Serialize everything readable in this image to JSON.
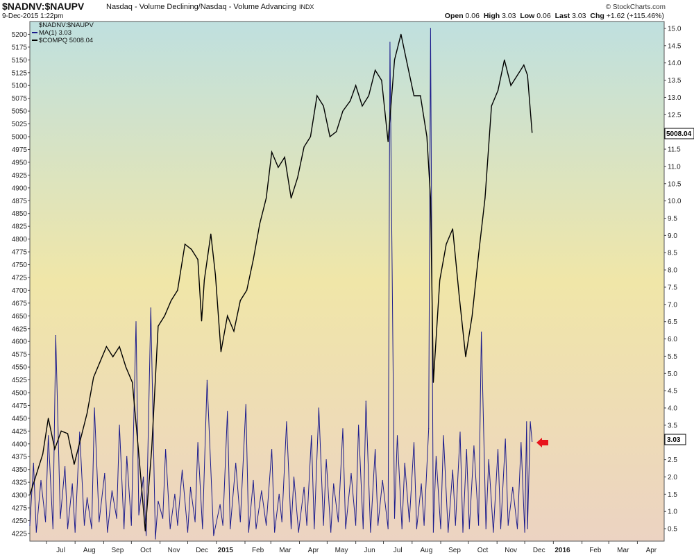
{
  "header": {
    "symbol": "$NADNV:$NAUPV",
    "description": "Nasdaq - Volume Declining/Nasdaq - Volume Advancing",
    "exchange": "INDX",
    "date": "9-Dec-2015 1:22pm",
    "brand": "© StockCharts.com",
    "open_label": "Open",
    "open_value": "0.06",
    "high_label": "High",
    "high_value": "3.03",
    "low_label": "Low",
    "low_value": "0.06",
    "last_label": "Last",
    "last_value": "3.03",
    "chg_label": "Chg",
    "chg_value": "+1.62 (+115.46%)"
  },
  "legend": [
    {
      "label": "$NADNV:$NAUPV",
      "color": "none"
    },
    {
      "label": "MA(1) 3.03",
      "color": "#1a1a8c"
    },
    {
      "label": "$COMPQ 5008.04",
      "color": "#000000"
    }
  ],
  "colors": {
    "ratio_line": "#1a1a8c",
    "compq_line": "#000000",
    "arrow": "#e8141c",
    "bg_top": "#bfe0df",
    "bg_mid": "#f0e6a8",
    "bg_bottom": "#ecd3c2"
  },
  "tags": {
    "compq_last": "5008.04",
    "ratio_last": "3.03"
  },
  "chart_data": {
    "type": "line",
    "x_tick_labels": [
      "Jul",
      "Aug",
      "Sep",
      "Oct",
      "Nov",
      "Dec",
      "2015",
      "Feb",
      "Mar",
      "Apr",
      "May",
      "Jun",
      "Jul",
      "Aug",
      "Sep",
      "Oct",
      "Nov",
      "Dec",
      "2016",
      "Feb",
      "Mar",
      "Apr"
    ],
    "x_range": [
      "2014-06-13",
      "2016-04-30"
    ],
    "left_axis": {
      "series": "$COMPQ",
      "range": [
        4210,
        5225
      ],
      "ticks": [
        4225,
        4250,
        4275,
        4300,
        4325,
        4350,
        4375,
        4400,
        4425,
        4450,
        4475,
        4500,
        4525,
        4550,
        4575,
        4600,
        4625,
        4650,
        4675,
        4700,
        4725,
        4750,
        4775,
        4800,
        4825,
        4850,
        4875,
        4900,
        4925,
        4950,
        4975,
        5000,
        5025,
        5050,
        5075,
        5100,
        5125,
        5150,
        5175,
        5200
      ]
    },
    "right_axis": {
      "series": "$NADNV:$NAUPV",
      "range": [
        0.14,
        15.2
      ],
      "ticks": [
        "0.5",
        "1.0",
        "1.5",
        "2.0",
        "2.5",
        "3.0",
        "3.5",
        "4.0",
        "4.5",
        "5.0",
        "5.5",
        "6.0",
        "6.5",
        "7.0",
        "7.5",
        "8.0",
        "8.5",
        "9.0",
        "9.5",
        "10.0",
        "10.5",
        "11.0",
        "11.5",
        "12.0",
        "12.5",
        "13.0",
        "13.5",
        "14.0",
        "14.5",
        "15.0"
      ]
    },
    "series": [
      {
        "name": "$COMPQ",
        "axis": "left",
        "x": [
          "2014-06-13",
          "2014-06-20",
          "2014-06-27",
          "2014-07-03",
          "2014-07-10",
          "2014-07-17",
          "2014-07-24",
          "2014-07-31",
          "2014-08-07",
          "2014-08-14",
          "2014-08-21",
          "2014-08-28",
          "2014-09-04",
          "2014-09-11",
          "2014-09-18",
          "2014-09-25",
          "2014-10-02",
          "2014-10-09",
          "2014-10-16",
          "2014-10-23",
          "2014-10-30",
          "2014-11-06",
          "2014-11-13",
          "2014-11-20",
          "2014-11-28",
          "2014-12-05",
          "2014-12-12",
          "2014-12-16",
          "2014-12-19",
          "2014-12-26",
          "2014-12-31",
          "2015-01-06",
          "2015-01-13",
          "2015-01-20",
          "2015-01-27",
          "2015-02-03",
          "2015-02-10",
          "2015-02-17",
          "2015-02-24",
          "2015-03-02",
          "2015-03-09",
          "2015-03-16",
          "2015-03-23",
          "2015-03-30",
          "2015-04-06",
          "2015-04-13",
          "2015-04-20",
          "2015-04-27",
          "2015-05-04",
          "2015-05-11",
          "2015-05-18",
          "2015-05-26",
          "2015-06-01",
          "2015-06-08",
          "2015-06-15",
          "2015-06-22",
          "2015-06-29",
          "2015-07-06",
          "2015-07-13",
          "2015-07-20",
          "2015-07-27",
          "2015-08-03",
          "2015-08-10",
          "2015-08-17",
          "2015-08-21",
          "2015-08-24",
          "2015-08-31",
          "2015-09-07",
          "2015-09-14",
          "2015-09-21",
          "2015-09-28",
          "2015-10-05",
          "2015-10-12",
          "2015-10-19",
          "2015-10-26",
          "2015-11-02",
          "2015-11-09",
          "2015-11-16",
          "2015-11-23",
          "2015-11-30",
          "2015-12-04",
          "2015-12-09"
        ],
        "values": [
          4300,
          4340,
          4380,
          4450,
          4390,
          4425,
          4420,
          4360,
          4410,
          4460,
          4530,
          4560,
          4590,
          4570,
          4590,
          4550,
          4520,
          4380,
          4230,
          4390,
          4630,
          4650,
          4680,
          4700,
          4790,
          4780,
          4760,
          4640,
          4720,
          4810,
          4730,
          4580,
          4650,
          4620,
          4680,
          4700,
          4760,
          4830,
          4880,
          4970,
          4940,
          4960,
          4880,
          4920,
          4980,
          5000,
          5080,
          5060,
          5000,
          5010,
          5050,
          5070,
          5100,
          5060,
          5080,
          5130,
          5110,
          4990,
          5150,
          5200,
          5140,
          5080,
          5080,
          5000,
          4880,
          4520,
          4720,
          4790,
          4820,
          4690,
          4570,
          4650,
          4770,
          4880,
          5060,
          5090,
          5150,
          5100,
          5120,
          5140,
          5120,
          5008.04
        ]
      },
      {
        "name": "MA(1) 3.03",
        "axis": "right",
        "x": [
          "2014-06-13",
          "2014-06-17",
          "2014-06-20",
          "2014-06-25",
          "2014-06-30",
          "2014-07-03",
          "2014-07-08",
          "2014-07-11",
          "2014-07-16",
          "2014-07-21",
          "2014-07-24",
          "2014-07-29",
          "2014-08-01",
          "2014-08-06",
          "2014-08-11",
          "2014-08-14",
          "2014-08-19",
          "2014-08-22",
          "2014-08-27",
          "2014-09-02",
          "2014-09-05",
          "2014-09-10",
          "2014-09-15",
          "2014-09-18",
          "2014-09-23",
          "2014-09-26",
          "2014-10-01",
          "2014-10-06",
          "2014-10-09",
          "2014-10-14",
          "2014-10-17",
          "2014-10-22",
          "2014-10-27",
          "2014-10-30",
          "2014-11-04",
          "2014-11-07",
          "2014-11-12",
          "2014-11-17",
          "2014-11-20",
          "2014-11-25",
          "2014-12-01",
          "2014-12-04",
          "2014-12-09",
          "2014-12-12",
          "2014-12-17",
          "2014-12-22",
          "2014-12-29",
          "2015-01-05",
          "2015-01-08",
          "2015-01-13",
          "2015-01-16",
          "2015-01-22",
          "2015-01-27",
          "2015-02-02",
          "2015-02-05",
          "2015-02-10",
          "2015-02-13",
          "2015-02-19",
          "2015-02-24",
          "2015-03-02",
          "2015-03-05",
          "2015-03-10",
          "2015-03-13",
          "2015-03-18",
          "2015-03-23",
          "2015-03-26",
          "2015-03-31",
          "2015-04-06",
          "2015-04-09",
          "2015-04-14",
          "2015-04-17",
          "2015-04-22",
          "2015-04-27",
          "2015-04-30",
          "2015-05-05",
          "2015-05-08",
          "2015-05-13",
          "2015-05-18",
          "2015-05-21",
          "2015-05-27",
          "2015-06-01",
          "2015-06-04",
          "2015-06-09",
          "2015-06-12",
          "2015-06-17",
          "2015-06-22",
          "2015-06-25",
          "2015-06-30",
          "2015-07-06",
          "2015-07-08",
          "2015-07-13",
          "2015-07-16",
          "2015-07-21",
          "2015-07-24",
          "2015-07-29",
          "2015-08-03",
          "2015-08-06",
          "2015-08-11",
          "2015-08-14",
          "2015-08-19",
          "2015-08-21",
          "2015-08-24",
          "2015-08-27",
          "2015-09-01",
          "2015-09-04",
          "2015-09-09",
          "2015-09-14",
          "2015-09-17",
          "2015-09-22",
          "2015-09-25",
          "2015-09-29",
          "2015-10-02",
          "2015-10-07",
          "2015-10-12",
          "2015-10-15",
          "2015-10-20",
          "2015-10-23",
          "2015-10-28",
          "2015-11-02",
          "2015-11-05",
          "2015-11-10",
          "2015-11-13",
          "2015-11-18",
          "2015-11-23",
          "2015-11-27",
          "2015-12-01",
          "2015-12-03",
          "2015-12-04",
          "2015-12-07",
          "2015-12-09"
        ],
        "values": [
          0.6,
          2.4,
          0.4,
          1.9,
          0.7,
          3.2,
          0.5,
          6.1,
          0.8,
          2.3,
          0.5,
          1.8,
          0.4,
          3.3,
          0.6,
          1.4,
          0.5,
          4.0,
          0.7,
          2.1,
          0.4,
          1.6,
          0.8,
          3.5,
          0.5,
          2.6,
          0.6,
          6.5,
          0.9,
          2.0,
          0.3,
          6.9,
          0.2,
          1.3,
          0.8,
          2.8,
          0.5,
          1.5,
          0.6,
          2.2,
          0.4,
          1.7,
          0.7,
          3.0,
          0.5,
          4.8,
          0.3,
          1.2,
          0.6,
          3.9,
          0.5,
          2.4,
          0.7,
          4.1,
          0.4,
          1.9,
          0.5,
          1.6,
          0.6,
          2.8,
          0.4,
          1.5,
          0.7,
          3.6,
          0.5,
          2.0,
          0.4,
          1.7,
          0.6,
          3.2,
          0.5,
          4.0,
          0.6,
          2.5,
          0.4,
          1.8,
          0.7,
          3.4,
          0.5,
          2.1,
          0.6,
          3.5,
          0.5,
          4.2,
          0.4,
          2.8,
          0.6,
          1.9,
          0.5,
          14.6,
          0.8,
          3.2,
          0.5,
          2.4,
          0.7,
          3.0,
          0.5,
          1.8,
          0.6,
          3.4,
          15.0,
          0.4,
          2.6,
          0.5,
          3.2,
          0.4,
          2.2,
          0.6,
          3.3,
          0.4,
          2.8,
          0.5,
          2.9,
          0.6,
          6.2,
          0.5,
          2.5,
          0.4,
          2.8,
          0.5,
          3.1,
          0.6,
          1.7,
          0.5,
          3.0,
          0.4,
          3.6,
          0.5,
          3.6,
          3.03
        ]
      }
    ],
    "annotations": [
      "arrow at last $NADNV:$NAUPV value"
    ]
  }
}
